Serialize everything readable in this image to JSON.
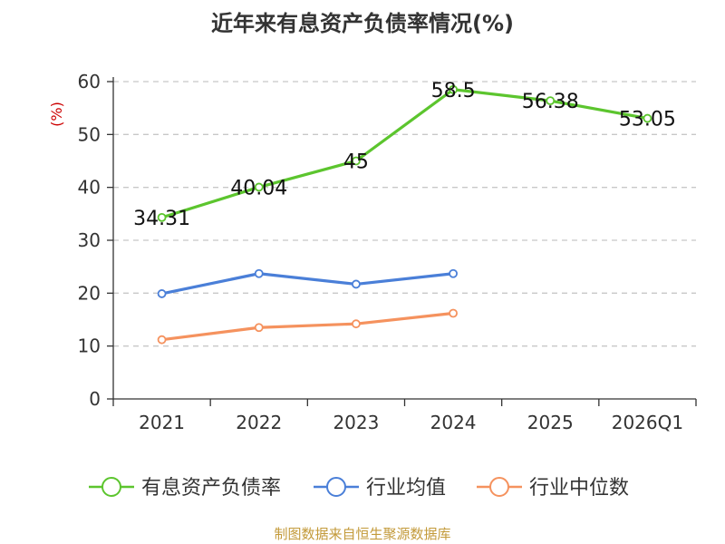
{
  "chart_data": {
    "type": "line",
    "title": "近年来有息资产负债率情况(%)",
    "ylabel": "(%)",
    "categories": [
      "2021",
      "2022",
      "2023",
      "2024",
      "2025",
      "2026Q1"
    ],
    "ylim": [
      0,
      60
    ],
    "yticks": [
      0,
      10,
      20,
      30,
      40,
      50,
      60
    ],
    "grid": true,
    "legend_position": "bottom",
    "series": [
      {
        "name": "有息资产负债率",
        "color": "#5cc52e",
        "values": [
          34.31,
          40.04,
          45,
          58.5,
          56.38,
          53.05
        ],
        "labels": [
          "34.31",
          "40.04",
          "45",
          "58.5",
          "56.38",
          "53.05"
        ]
      },
      {
        "name": "行业均值",
        "color": "#4a7fd8",
        "values": [
          19.9,
          23.7,
          21.7,
          23.7,
          null,
          null
        ]
      },
      {
        "name": "行业中位数",
        "color": "#f5925e",
        "values": [
          11.2,
          13.5,
          14.2,
          16.2,
          null,
          null
        ]
      }
    ]
  },
  "source": "制图数据来自恒生聚源数据库"
}
